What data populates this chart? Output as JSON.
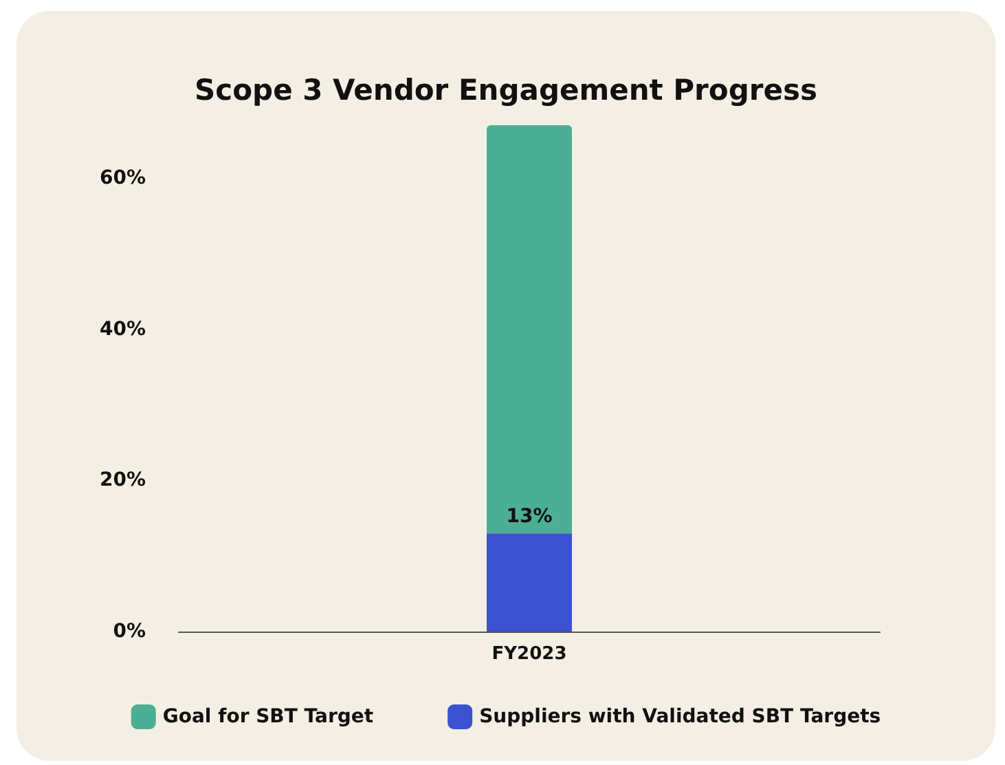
{
  "chart_data": {
    "type": "bar",
    "title": "Scope 3 Vendor Engagement Progress",
    "categories": [
      "FY2023"
    ],
    "stacked": true,
    "series": [
      {
        "name": "Suppliers with Validated SBT Targets",
        "color": "#3b52d1",
        "values": [
          13
        ],
        "value_labels": [
          "13%"
        ]
      },
      {
        "name": "Goal for SBT Target",
        "color": "#4caf93",
        "values": [
          54
        ]
      }
    ],
    "ylim": [
      0,
      67
    ],
    "yticks": [
      {
        "value": 0,
        "label": "0%"
      },
      {
        "value": 20,
        "label": "20%"
      },
      {
        "value": 40,
        "label": "40%"
      },
      {
        "value": 60,
        "label": "60%"
      }
    ],
    "grid": false,
    "legend": "bottom"
  }
}
